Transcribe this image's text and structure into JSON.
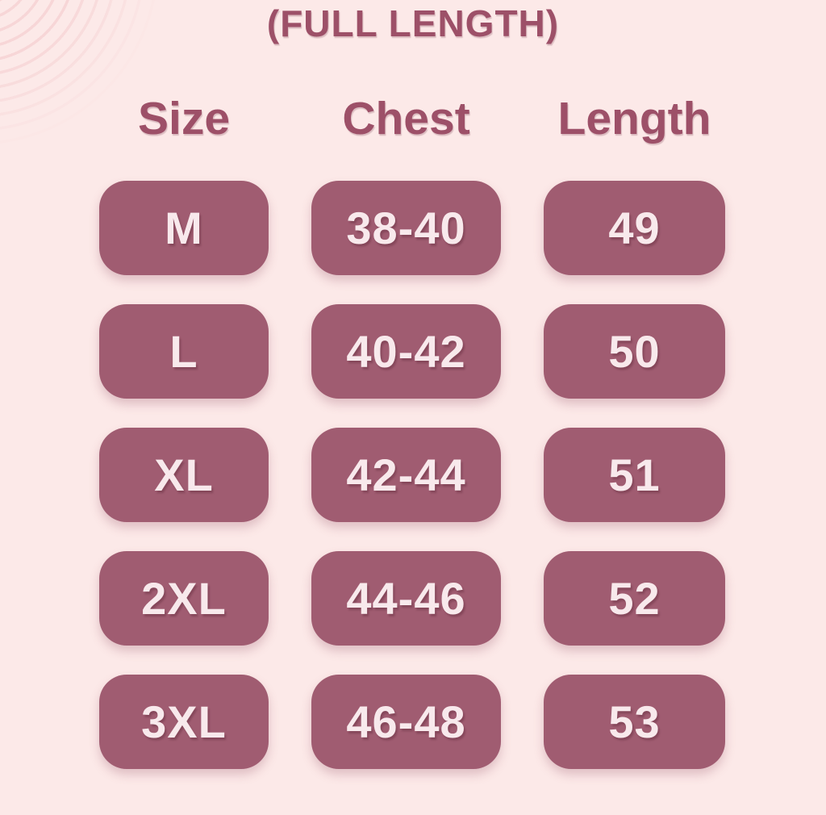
{
  "page": {
    "title": "(FULL LENGTH)"
  },
  "table": {
    "columns": {
      "size": "Size",
      "chest": "Chest",
      "length": "Length"
    },
    "rows": [
      {
        "size": "M",
        "chest": "38-40",
        "length": "49"
      },
      {
        "size": "L",
        "chest": "40-42",
        "length": "50"
      },
      {
        "size": "XL",
        "chest": "42-44",
        "length": "51"
      },
      {
        "size": "2XL",
        "chest": "44-46",
        "length": "52"
      },
      {
        "size": "3XL",
        "chest": "46-48",
        "length": "53"
      }
    ]
  },
  "colors": {
    "background": "#fce9e8",
    "cell_background": "#a05c71",
    "heading_text": "#9d5068",
    "cell_text": "#f8e9ec",
    "corner_arc": "#f7d6d7"
  },
  "chart_data": {
    "type": "table",
    "title": "(FULL LENGTH)",
    "columns": [
      "Size",
      "Chest",
      "Length"
    ],
    "rows": [
      [
        "M",
        "38-40",
        "49"
      ],
      [
        "L",
        "40-42",
        "50"
      ],
      [
        "XL",
        "42-44",
        "51"
      ],
      [
        "2XL",
        "44-46",
        "52"
      ],
      [
        "3XL",
        "46-48",
        "53"
      ]
    ]
  }
}
